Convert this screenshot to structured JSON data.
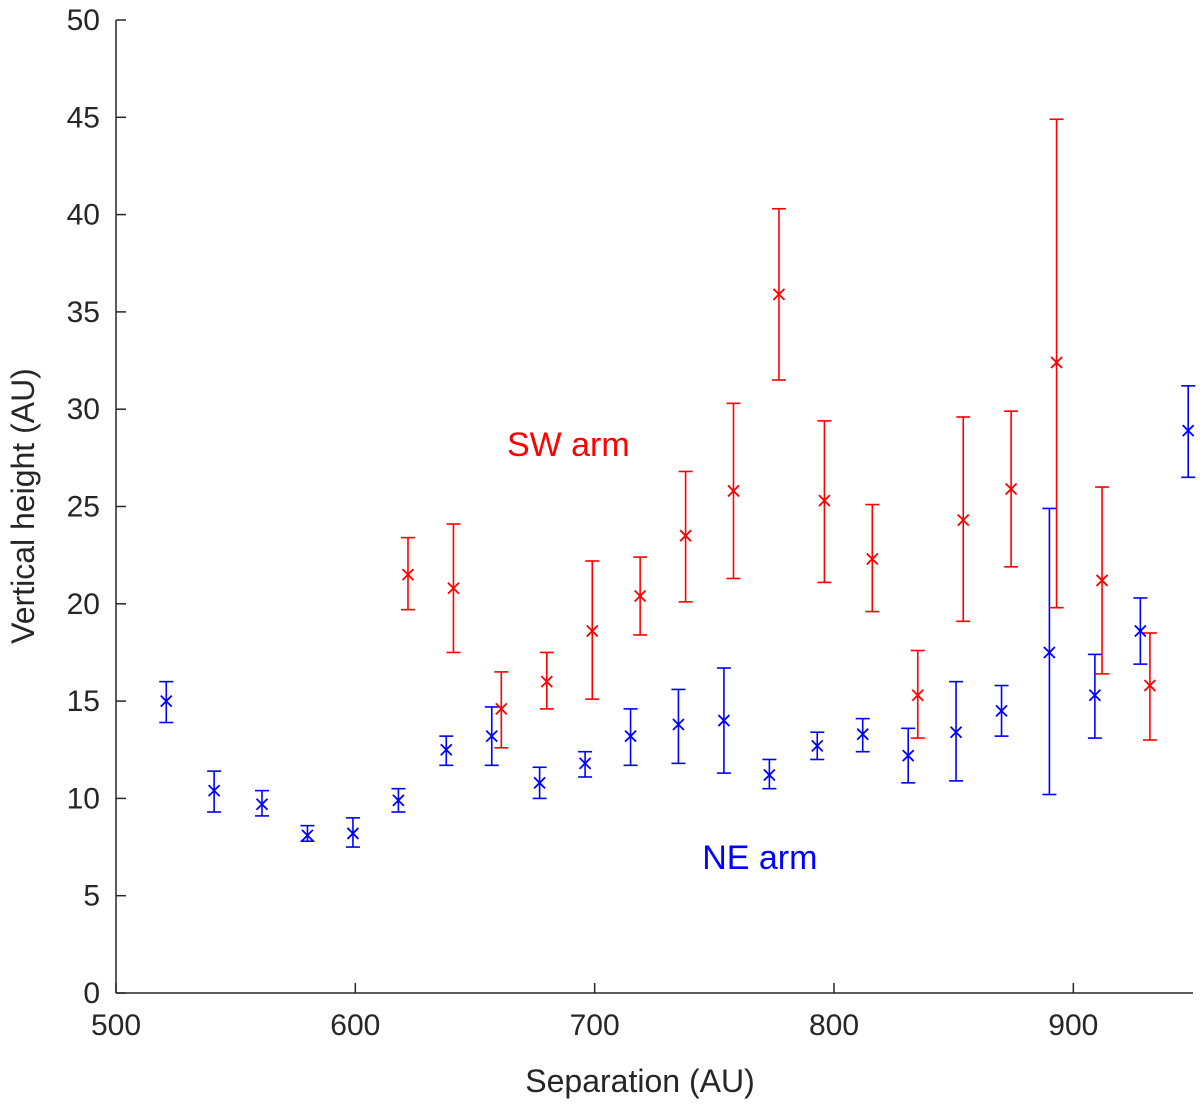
{
  "chart_data": {
    "type": "scatter",
    "title": "",
    "xlabel": "Separation (AU)",
    "ylabel": "Vertical height (AU)",
    "xlim": [
      500,
      950
    ],
    "ylim": [
      0,
      50
    ],
    "xticks": [
      500,
      600,
      700,
      800,
      900
    ],
    "yticks": [
      0,
      5,
      10,
      15,
      20,
      25,
      30,
      35,
      40,
      45,
      50
    ],
    "grid": false,
    "series": [
      {
        "name": "NE arm",
        "color": "#0000ff",
        "marker": "x",
        "points": [
          {
            "x": 521,
            "y": 15.0,
            "lo": 13.9,
            "hi": 16.0
          },
          {
            "x": 541,
            "y": 10.4,
            "lo": 9.3,
            "hi": 11.4
          },
          {
            "x": 561,
            "y": 9.7,
            "lo": 9.1,
            "hi": 10.4
          },
          {
            "x": 580,
            "y": 8.1,
            "lo": 7.8,
            "hi": 8.6
          },
          {
            "x": 599,
            "y": 8.2,
            "lo": 7.5,
            "hi": 9.0
          },
          {
            "x": 618,
            "y": 9.9,
            "lo": 9.3,
            "hi": 10.5
          },
          {
            "x": 638,
            "y": 12.5,
            "lo": 11.7,
            "hi": 13.2
          },
          {
            "x": 657,
            "y": 13.2,
            "lo": 11.7,
            "hi": 14.7
          },
          {
            "x": 677,
            "y": 10.8,
            "lo": 10.0,
            "hi": 11.6
          },
          {
            "x": 696,
            "y": 11.8,
            "lo": 11.1,
            "hi": 12.4
          },
          {
            "x": 715,
            "y": 13.2,
            "lo": 11.7,
            "hi": 14.6
          },
          {
            "x": 735,
            "y": 13.8,
            "lo": 11.8,
            "hi": 15.6
          },
          {
            "x": 754,
            "y": 14.0,
            "lo": 11.3,
            "hi": 16.7
          },
          {
            "x": 773,
            "y": 11.2,
            "lo": 10.5,
            "hi": 12.0
          },
          {
            "x": 793,
            "y": 12.7,
            "lo": 12.0,
            "hi": 13.4
          },
          {
            "x": 812,
            "y": 13.3,
            "lo": 12.4,
            "hi": 14.1
          },
          {
            "x": 831,
            "y": 12.2,
            "lo": 10.8,
            "hi": 13.6
          },
          {
            "x": 851,
            "y": 13.4,
            "lo": 10.9,
            "hi": 16.0
          },
          {
            "x": 870,
            "y": 14.5,
            "lo": 13.2,
            "hi": 15.8
          },
          {
            "x": 890,
            "y": 17.5,
            "lo": 10.2,
            "hi": 24.9
          },
          {
            "x": 909,
            "y": 15.3,
            "lo": 13.1,
            "hi": 17.4
          },
          {
            "x": 928,
            "y": 18.6,
            "lo": 16.9,
            "hi": 20.3
          },
          {
            "x": 948,
            "y": 28.9,
            "lo": 26.5,
            "hi": 31.2
          }
        ]
      },
      {
        "name": "SW arm",
        "color": "#ff0000",
        "marker": "x",
        "points": [
          {
            "x": 622,
            "y": 21.5,
            "lo": 19.7,
            "hi": 23.4
          },
          {
            "x": 641,
            "y": 20.8,
            "lo": 17.5,
            "hi": 24.1
          },
          {
            "x": 661,
            "y": 14.6,
            "lo": 12.6,
            "hi": 16.5
          },
          {
            "x": 680,
            "y": 16.0,
            "lo": 14.6,
            "hi": 17.5
          },
          {
            "x": 699,
            "y": 18.6,
            "lo": 15.1,
            "hi": 22.2
          },
          {
            "x": 719,
            "y": 20.4,
            "lo": 18.4,
            "hi": 22.4
          },
          {
            "x": 738,
            "y": 23.5,
            "lo": 20.1,
            "hi": 26.8
          },
          {
            "x": 758,
            "y": 25.8,
            "lo": 21.3,
            "hi": 30.3
          },
          {
            "x": 777,
            "y": 35.9,
            "lo": 31.5,
            "hi": 40.3
          },
          {
            "x": 796,
            "y": 25.3,
            "lo": 21.1,
            "hi": 29.4
          },
          {
            "x": 816,
            "y": 22.3,
            "lo": 19.6,
            "hi": 25.1
          },
          {
            "x": 835,
            "y": 15.3,
            "lo": 13.1,
            "hi": 17.6
          },
          {
            "x": 854,
            "y": 24.3,
            "lo": 19.1,
            "hi": 29.6
          },
          {
            "x": 874,
            "y": 25.9,
            "lo": 21.9,
            "hi": 29.9
          },
          {
            "x": 893,
            "y": 32.4,
            "lo": 19.8,
            "hi": 44.9
          },
          {
            "x": 912,
            "y": 21.2,
            "lo": 16.4,
            "hi": 26.0
          },
          {
            "x": 932,
            "y": 15.8,
            "lo": 13.0,
            "hi": 18.5
          }
        ]
      }
    ],
    "annotations": [
      {
        "text": "SW arm",
        "color": "#ff0000",
        "x": 689,
        "y": 28.2
      },
      {
        "text": "NE arm",
        "color": "#0000ff",
        "x": 769,
        "y": 7.0
      }
    ]
  }
}
